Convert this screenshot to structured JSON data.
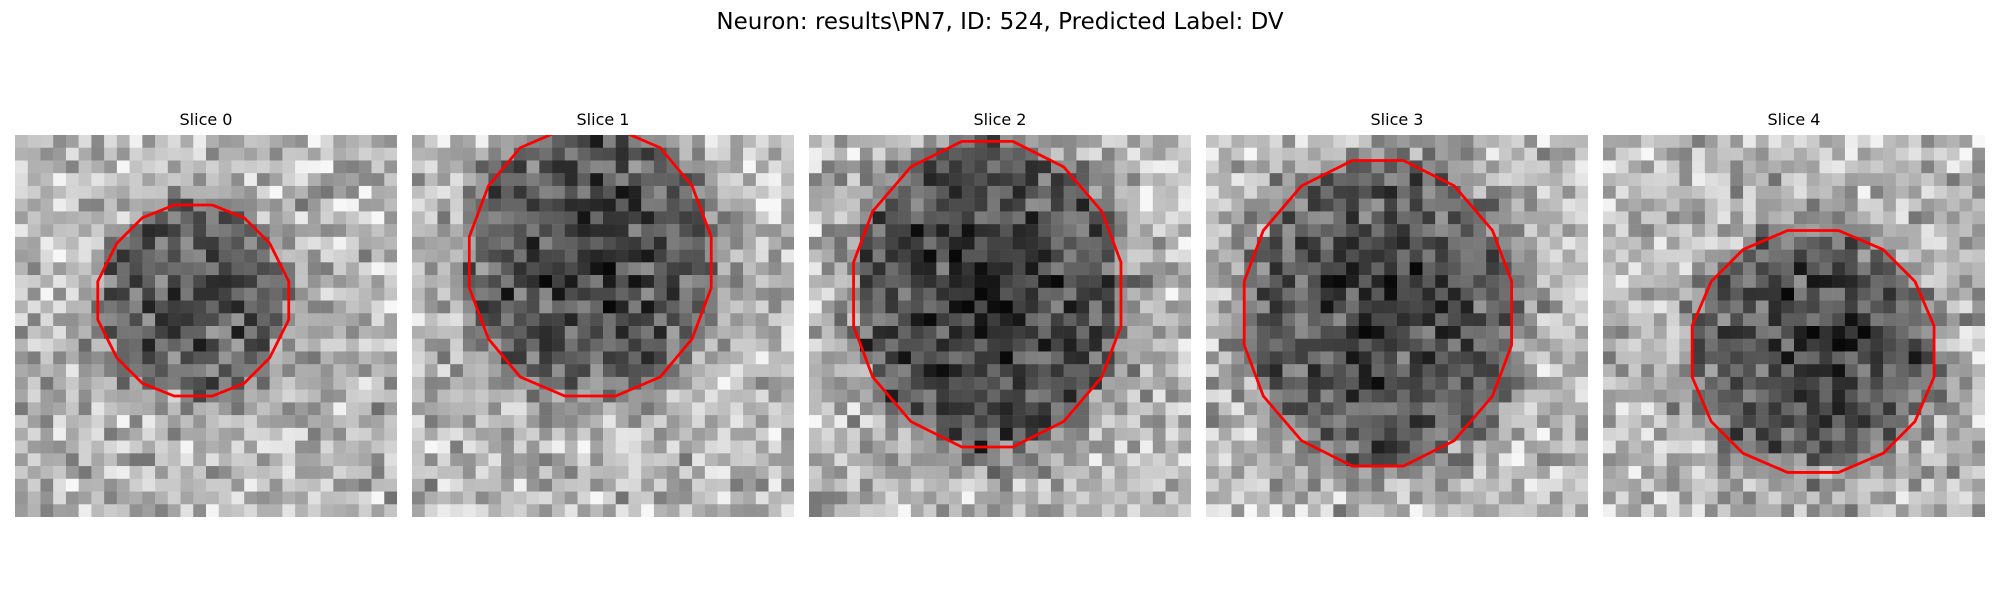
{
  "figure": {
    "title": "Neuron: results\\PN7, ID: 524, Predicted Label: DV",
    "contour_color": "#ff0000"
  },
  "panels": [
    {
      "title": "Slice 0",
      "center": [
        14,
        13
      ],
      "radius": [
        6.8,
        7.2
      ],
      "darkness": 0.45
    },
    {
      "title": "Slice 1",
      "center": [
        14,
        10
      ],
      "radius": [
        9.2,
        10.0
      ],
      "darkness": 0.5
    },
    {
      "title": "Slice 2",
      "center": [
        14,
        12.5
      ],
      "radius": [
        10.0,
        11.5
      ],
      "darkness": 0.55
    },
    {
      "title": "Slice 3",
      "center": [
        13.5,
        14
      ],
      "radius": [
        10.0,
        11.5
      ],
      "darkness": 0.5
    },
    {
      "title": "Slice 4",
      "center": [
        16.5,
        17
      ],
      "radius": [
        9.0,
        9.0
      ],
      "darkness": 0.5
    }
  ]
}
